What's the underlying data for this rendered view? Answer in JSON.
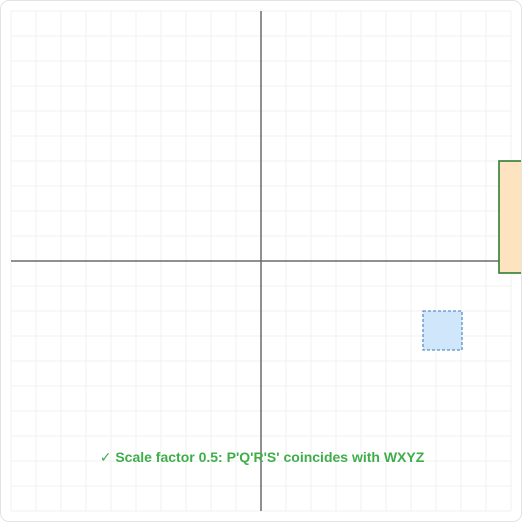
{
  "colors": {
    "grid": "#f0f0f0",
    "axis": "#6b6b6b",
    "target_fill": "#cfe6fb",
    "target_stroke": "#5b8fc9",
    "image_fill": "#fde3c0",
    "image_stroke": "#2e7d32",
    "success": "#3fae4a"
  },
  "status": {
    "icon": "checkmark-icon",
    "check": "✓",
    "text": "Scale factor 0.5: P'Q'R'S' coincides with WXYZ"
  }
}
